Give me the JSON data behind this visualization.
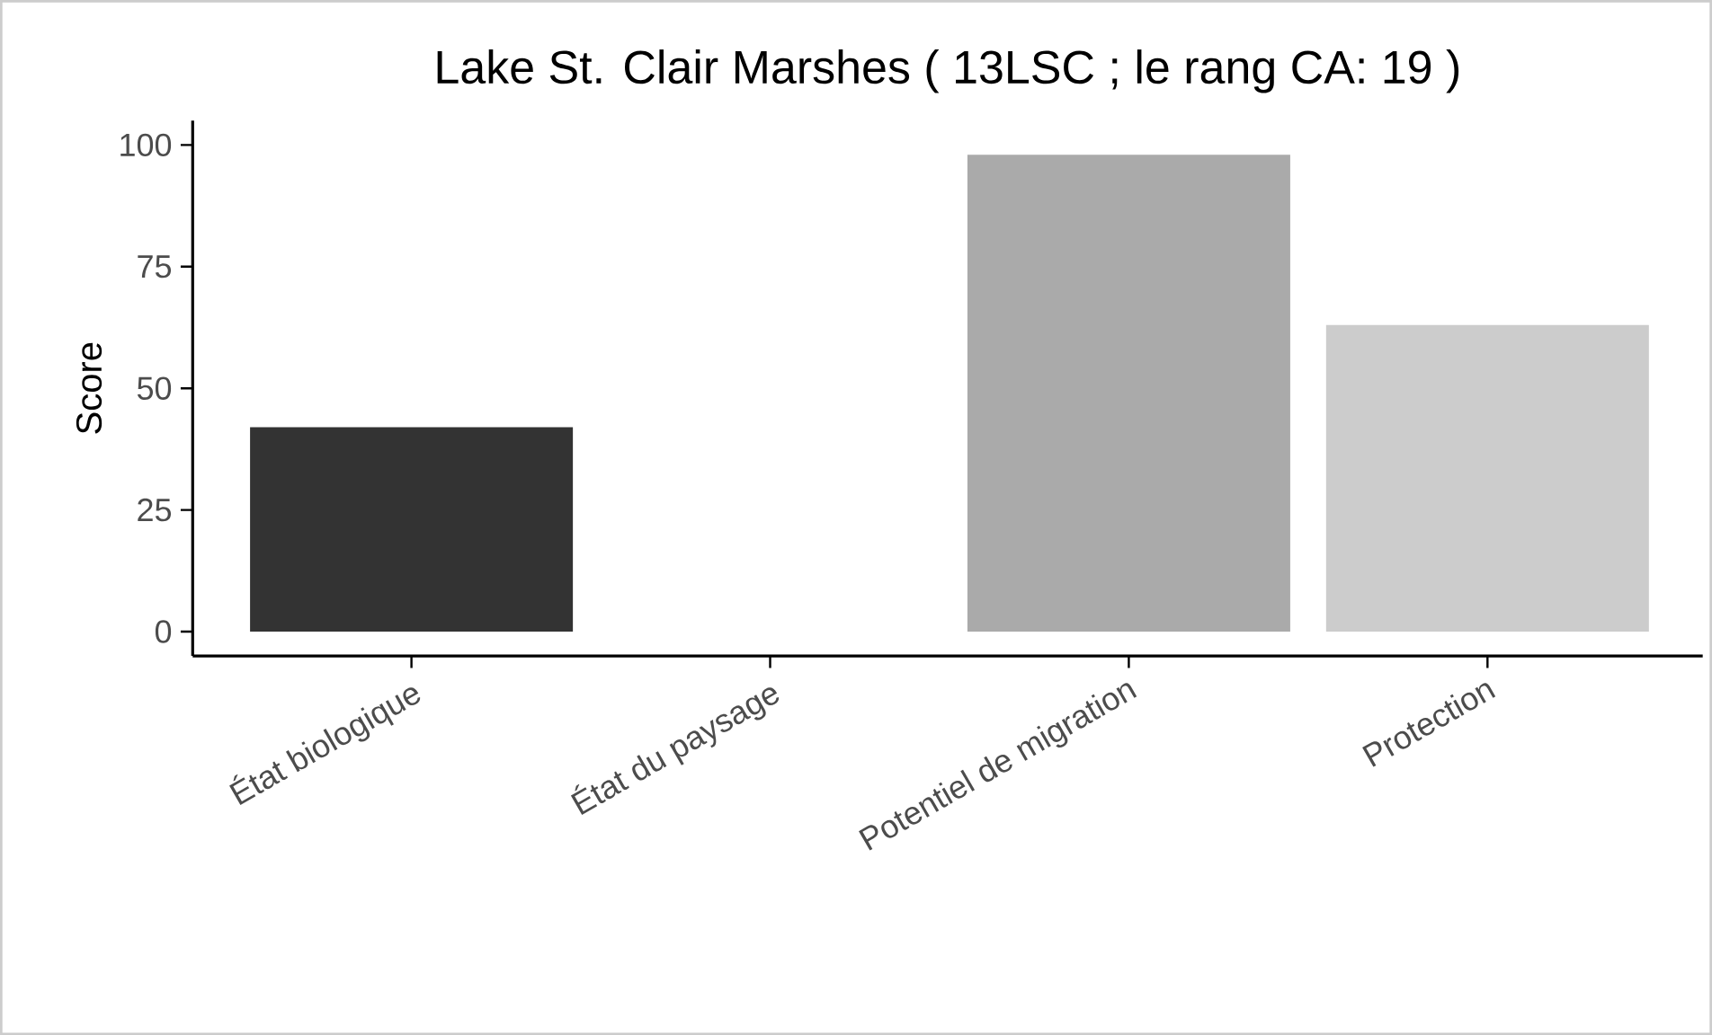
{
  "chart_data": {
    "type": "bar",
    "title": "Lake St. Clair Marshes ( 13LSC ; le rang CA: 19 )",
    "ylabel": "Score",
    "categories": [
      "État biologique",
      "État du paysage",
      "Potentiel de migration",
      "Protection"
    ],
    "values": [
      42,
      null,
      98,
      63
    ],
    "colors": [
      "#333333",
      "#777777",
      "#aaaaaa",
      "#cccccc"
    ],
    "ylim": [
      -5,
      105
    ],
    "yticks": [
      0,
      25,
      50,
      75,
      100
    ],
    "grid": false
  }
}
